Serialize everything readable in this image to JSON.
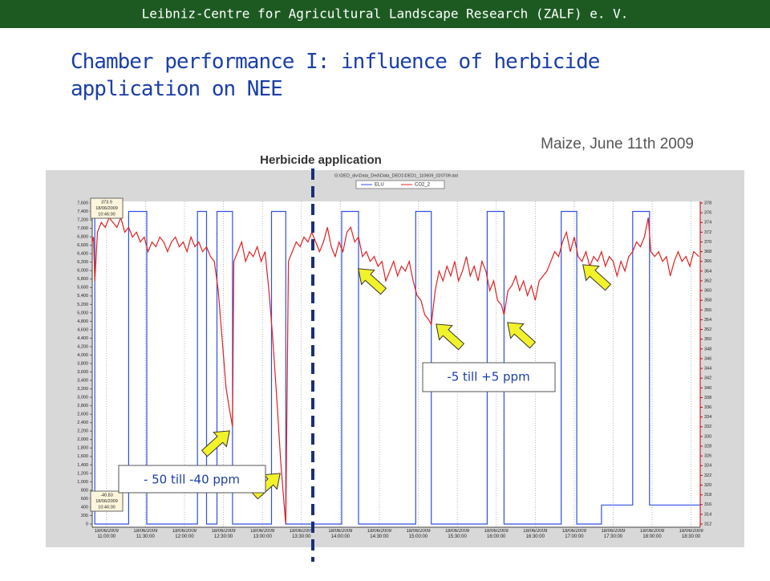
{
  "header": "Leibniz-Centre for Agricultural Landscape Research (ZALF) e. V.",
  "title": "Chamber performance I: influence of herbicide application on NEE",
  "subtitle": "Maize, June 11th 2009",
  "marker_label": "Herbicide application",
  "callouts": [
    "- 50 till -40 ppm",
    "-5 till +5 ppm"
  ],
  "chart_data": {
    "type": "line",
    "file_path": "G:\\DED_div\\Data_Ded\\Data_DED1\\DED1_110609_020709.dat",
    "tooltips": [
      [
        "373.9",
        "18/06/2009",
        "10:46:00"
      ],
      [
        "-40.83",
        "18/06/2009",
        "10:46:00"
      ]
    ],
    "xlim": [
      649,
      1117
    ],
    "xticks": [
      {
        "value": 660,
        "label": "18/06/2009 11:00:00"
      },
      {
        "value": 690,
        "label": "18/06/2009 11:30:00"
      },
      {
        "value": 720,
        "label": "18/06/2009 12:00:00"
      },
      {
        "value": 750,
        "label": "18/06/2009 12:30:00"
      },
      {
        "value": 780,
        "label": "18/06/2009 13:00:00"
      },
      {
        "value": 810,
        "label": "18/06/2009 13:30:00"
      },
      {
        "value": 840,
        "label": "18/06/2009 14:00:00"
      },
      {
        "value": 870,
        "label": "18/06/2009 14:30:00"
      },
      {
        "value": 900,
        "label": "18/06/2009 15:00:00"
      },
      {
        "value": 930,
        "label": "18/06/2009 15:30:00"
      },
      {
        "value": 960,
        "label": "18/06/2009 16:00:00"
      },
      {
        "value": 990,
        "label": "18/06/2009 16:30:00"
      },
      {
        "value": 1020,
        "label": "18/06/2009 17:00:00"
      },
      {
        "value": 1050,
        "label": "18/06/2009 17:30:00"
      },
      {
        "value": 1080,
        "label": "18/06/2009 18:00:00"
      },
      {
        "value": 1110,
        "label": "18/06/2009 18:30:00"
      }
    ],
    "ylim": [
      0,
      7600
    ],
    "yticks": [
      0,
      200,
      400,
      600,
      800,
      {
        "value": 1000,
        "label": "1,000"
      },
      {
        "value": 1200,
        "label": "1,200"
      },
      {
        "value": 1400,
        "label": "1,400"
      },
      {
        "value": 1600,
        "label": "1,600"
      },
      {
        "value": 1800,
        "label": "1,800"
      },
      {
        "value": 2000,
        "label": "2,000"
      },
      {
        "value": 2200,
        "label": "2,200"
      },
      {
        "value": 2400,
        "label": "2,400"
      },
      {
        "value": 2600,
        "label": "2,600"
      },
      {
        "value": 2800,
        "label": "2,800"
      },
      {
        "value": 3000,
        "label": "3,000"
      },
      {
        "value": 3200,
        "label": "3,200"
      },
      {
        "value": 3400,
        "label": "3,400"
      },
      {
        "value": 3600,
        "label": "3,600"
      },
      {
        "value": 3800,
        "label": "3,800"
      },
      {
        "value": 4000,
        "label": "4,000"
      },
      {
        "value": 4200,
        "label": "4,200"
      },
      {
        "value": 4400,
        "label": "4,400"
      },
      {
        "value": 4600,
        "label": "4,600"
      },
      {
        "value": 4800,
        "label": "4,800"
      },
      {
        "value": 5000,
        "label": "5,000"
      },
      {
        "value": 5200,
        "label": "5,200"
      },
      {
        "value": 5400,
        "label": "5,400"
      },
      {
        "value": 5600,
        "label": "5,600"
      },
      {
        "value": 5800,
        "label": "5,800"
      },
      {
        "value": 6000,
        "label": "6,000"
      },
      {
        "value": 6200,
        "label": "6,200"
      },
      {
        "value": 6400,
        "label": "6,400"
      },
      {
        "value": 6600,
        "label": "6,600"
      },
      {
        "value": 6800,
        "label": "6,800"
      },
      {
        "value": 7000,
        "label": "7,000"
      },
      {
        "value": 7200,
        "label": "7,200"
      },
      {
        "value": 7400,
        "label": "7,400"
      },
      {
        "value": 7600,
        "label": "7,600"
      }
    ],
    "y2lim": [
      312,
      378
    ],
    "y2ticks": [
      312,
      314,
      316,
      318,
      320,
      322,
      324,
      326,
      328,
      330,
      332,
      334,
      336,
      338,
      340,
      342,
      344,
      346,
      348,
      350,
      352,
      354,
      356,
      358,
      360,
      362,
      364,
      366,
      368,
      370,
      372,
      374,
      376,
      378
    ],
    "grid": true,
    "series": [
      {
        "name": "ELU",
        "color": "#3050e0",
        "x": [
          649,
          651,
          651,
          677,
          677,
          691,
          691,
          730,
          730,
          737,
          737,
          745,
          745,
          757,
          757,
          787,
          787,
          798,
          798,
          841,
          841,
          854,
          854,
          898,
          898,
          910,
          910,
          953,
          953,
          966,
          966,
          1010,
          1010,
          1022,
          1022,
          1041,
          1041,
          1065,
          1065,
          1078,
          1078,
          1117
        ],
        "values": [
          7400,
          7400,
          0,
          0,
          7400,
          7400,
          0,
          0,
          7400,
          7400,
          0,
          0,
          7400,
          7400,
          0,
          0,
          7400,
          7400,
          0,
          0,
          7400,
          7400,
          0,
          0,
          7400,
          7400,
          0,
          0,
          7400,
          7400,
          0,
          0,
          7400,
          7400,
          0,
          0,
          450,
          450,
          7400,
          7400,
          450,
          450
        ]
      },
      {
        "name": "CO2_2",
        "color": "#e02020",
        "axis": "y2",
        "x": [
          649,
          650,
          651,
          653,
          656,
          659,
          662,
          665,
          668,
          671,
          674,
          677,
          680,
          683,
          686,
          689,
          692,
          695,
          698,
          701,
          704,
          707,
          710,
          713,
          716,
          719,
          722,
          725,
          728,
          731,
          734,
          737,
          740,
          743,
          746,
          749,
          752,
          755,
          757,
          758,
          761,
          764,
          767,
          770,
          773,
          776,
          779,
          782,
          785,
          788,
          791,
          794,
          797,
          798,
          800,
          803,
          806,
          809,
          812,
          815,
          818,
          821,
          824,
          827,
          830,
          833,
          836,
          839,
          842,
          845,
          848,
          851,
          854,
          857,
          860,
          863,
          866,
          869,
          872,
          875,
          878,
          881,
          884,
          887,
          890,
          893,
          896,
          899,
          902,
          905,
          908,
          910,
          913,
          916,
          919,
          922,
          925,
          928,
          931,
          934,
          937,
          940,
          943,
          946,
          949,
          952,
          955,
          958,
          961,
          964,
          966,
          969,
          972,
          975,
          978,
          981,
          984,
          987,
          990,
          993,
          996,
          999,
          1002,
          1005,
          1008,
          1011,
          1014,
          1017,
          1020,
          1023,
          1026,
          1029,
          1032,
          1035,
          1038,
          1041,
          1044,
          1047,
          1050,
          1053,
          1056,
          1059,
          1062,
          1065,
          1068,
          1071,
          1074,
          1077,
          1079,
          1082,
          1085,
          1088,
          1091,
          1094,
          1097,
          1100,
          1103,
          1106,
          1109,
          1112,
          1116
        ],
        "values": [
          370,
          371,
          362,
          372,
          374,
          373,
          375,
          374,
          373,
          375,
          372,
          373,
          371,
          372,
          370,
          371,
          368,
          370,
          369,
          371,
          370,
          368,
          370,
          371,
          369,
          370,
          368,
          371,
          369,
          370,
          368,
          369,
          367,
          366,
          360,
          350,
          340,
          335,
          332,
          366,
          368,
          370,
          366,
          368,
          367,
          369,
          366,
          368,
          360,
          350,
          338,
          325,
          315,
          312,
          366,
          368,
          370,
          369,
          371,
          370,
          372,
          370,
          368,
          370,
          373,
          369,
          367,
          370,
          368,
          372,
          373,
          370,
          371,
          367,
          368,
          366,
          367,
          365,
          366,
          362,
          364,
          366,
          363,
          365,
          364,
          366,
          362,
          359,
          358,
          355,
          354,
          353,
          360,
          364,
          362,
          365,
          363,
          366,
          362,
          364,
          367,
          363,
          365,
          362,
          366,
          364,
          360,
          362,
          358,
          357,
          355,
          360,
          361,
          363,
          360,
          362,
          359,
          361,
          358,
          362,
          363,
          364,
          366,
          368,
          367,
          370,
          372,
          368,
          371,
          367,
          366,
          368,
          365,
          367,
          366,
          368,
          365,
          367,
          366,
          363,
          366,
          364,
          367,
          368,
          370,
          369,
          371,
          375,
          368,
          367,
          368,
          366,
          367,
          363,
          366,
          368,
          366,
          367,
          365,
          368,
          367
        ]
      }
    ]
  }
}
